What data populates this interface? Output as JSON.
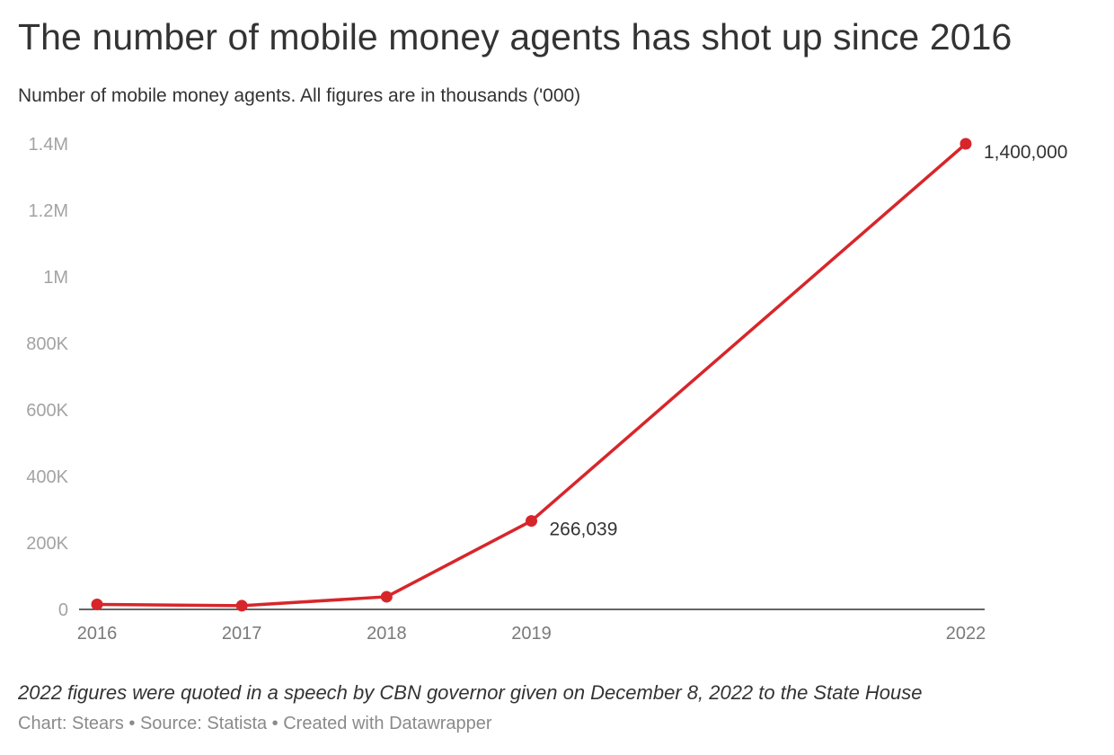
{
  "header": {
    "title": "The number of mobile money agents has shot up since 2016",
    "subtitle": "Number of mobile money agents. All figures are in thousands ('000)"
  },
  "chart_data": {
    "type": "line",
    "x": [
      "2016",
      "2017",
      "2018",
      "2019",
      "2022"
    ],
    "x_numeric": [
      2016,
      2017,
      2018,
      2019,
      2022
    ],
    "series": [
      {
        "values": [
          15000,
          11000,
          38000,
          266039,
          1400000
        ],
        "color": "#d7262b"
      }
    ],
    "ylim": [
      0,
      1400000
    ],
    "yticks": [
      0,
      200000,
      400000,
      600000,
      800000,
      1000000,
      1200000,
      1400000
    ],
    "ytick_labels": [
      "0",
      "200K",
      "400K",
      "600K",
      "800K",
      "1M",
      "1.2M",
      "1.4M"
    ],
    "data_labels": [
      {
        "x": "2019",
        "text": "266,039"
      },
      {
        "x": "2022",
        "text": "1,400,000"
      }
    ],
    "grid": false,
    "xlabel": "",
    "ylabel": ""
  },
  "notes": "2022 figures were quoted in a speech by CBN governor given on December 8, 2022 to the State House",
  "footer": "Chart: Stears • Source: Statista • Created with Datawrapper"
}
